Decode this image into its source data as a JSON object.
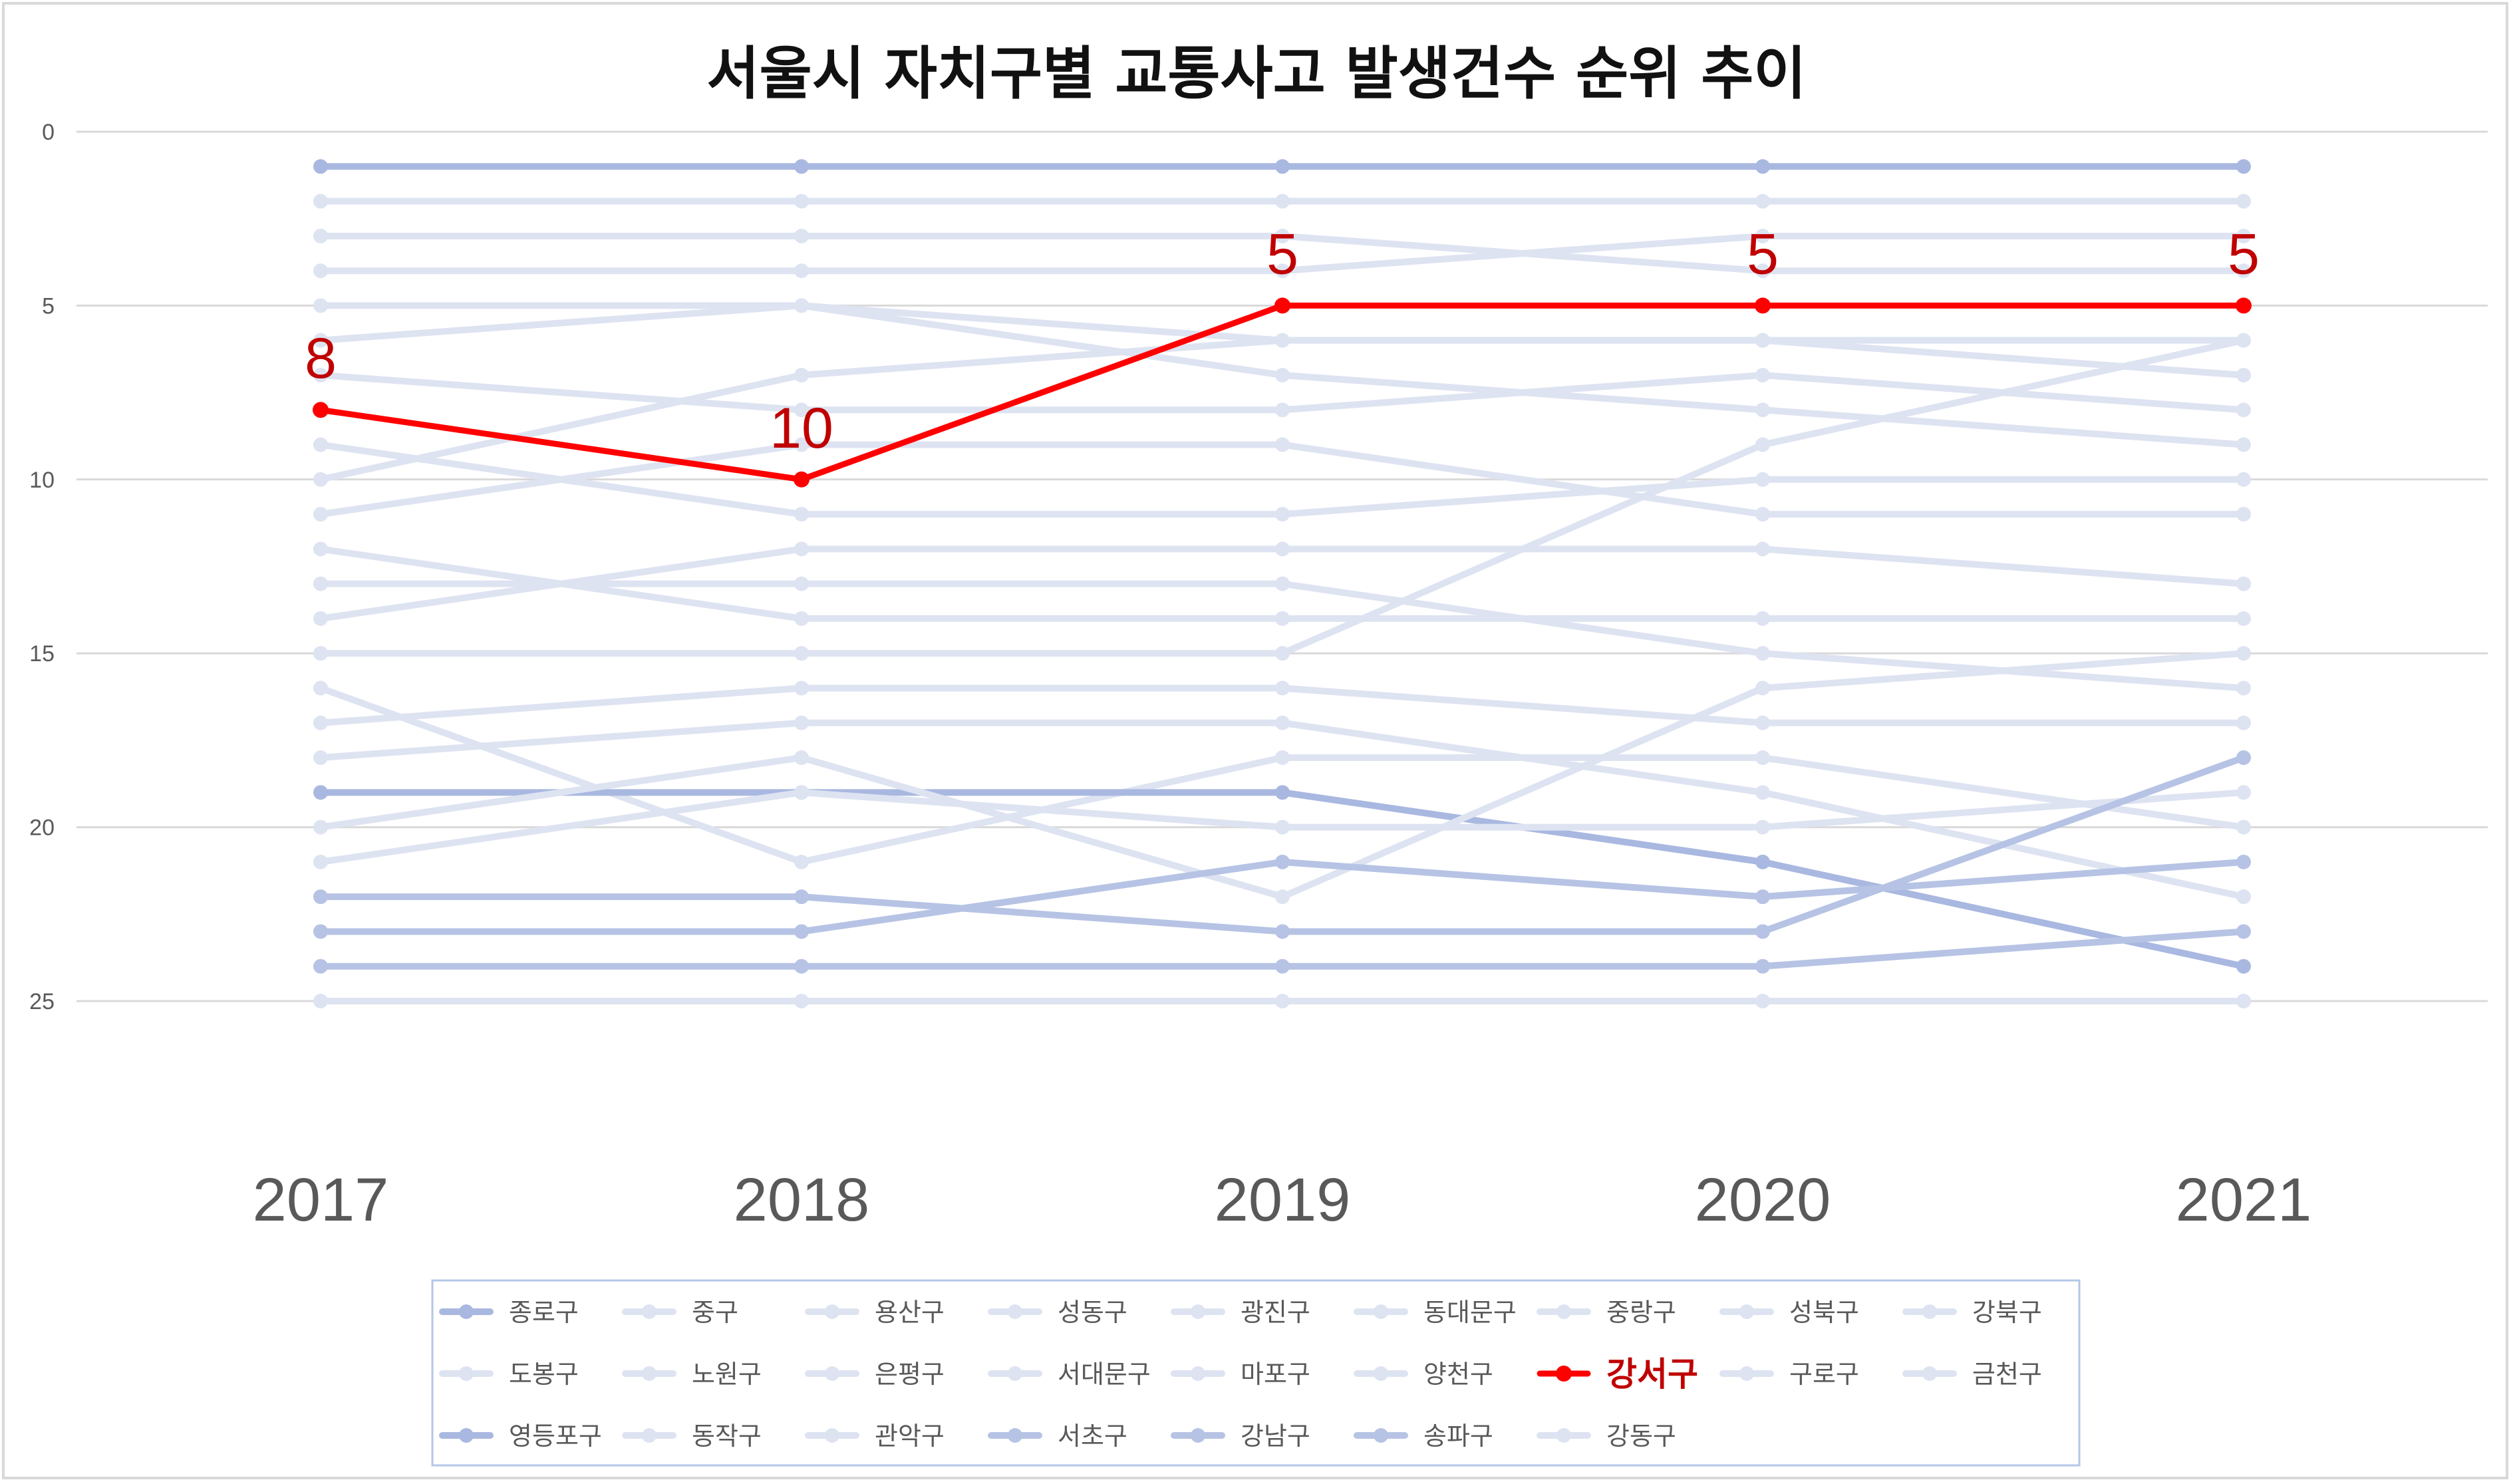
{
  "chart_data": {
    "type": "line",
    "title": "서울시 자치구별 교통사고 발생건수 순위 추이",
    "x": [
      "2017",
      "2018",
      "2019",
      "2020",
      "2021"
    ],
    "ylim": [
      0,
      25
    ],
    "y_inverted": true,
    "yticks": [
      0,
      5,
      10,
      15,
      20,
      25
    ],
    "grid": true,
    "legend_position": "bottom",
    "highlight_series": "강서구",
    "series": [
      {
        "name": "종로구",
        "values": [
          1,
          1,
          1,
          1,
          1
        ],
        "color": "#a9b8e0"
      },
      {
        "name": "중구",
        "values": [
          2,
          2,
          2,
          2,
          2
        ],
        "color": "#dde3f1"
      },
      {
        "name": "용산구",
        "values": [
          3,
          3,
          3,
          4,
          4
        ],
        "color": "#dde3f1"
      },
      {
        "name": "성동구",
        "values": [
          4,
          4,
          4,
          3,
          3
        ],
        "color": "#dde3f1"
      },
      {
        "name": "광진구",
        "values": [
          5,
          5,
          7,
          8,
          9
        ],
        "color": "#dde3f1"
      },
      {
        "name": "동대문구",
        "values": [
          6,
          5,
          6,
          6,
          7
        ],
        "color": "#dde3f1"
      },
      {
        "name": "중랑구",
        "values": [
          7,
          8,
          8,
          7,
          8
        ],
        "color": "#dde3f1"
      },
      {
        "name": "성북구",
        "values": [
          9,
          11,
          11,
          10,
          10
        ],
        "color": "#dde3f1"
      },
      {
        "name": "강북구",
        "values": [
          10,
          7,
          6,
          6,
          6
        ],
        "color": "#dde3f1"
      },
      {
        "name": "도봉구",
        "values": [
          11,
          9,
          9,
          11,
          11
        ],
        "color": "#dde3f1"
      },
      {
        "name": "노원구",
        "values": [
          12,
          14,
          14,
          14,
          14
        ],
        "color": "#dde3f1"
      },
      {
        "name": "은평구",
        "values": [
          13,
          13,
          13,
          15,
          16
        ],
        "color": "#dde3f1"
      },
      {
        "name": "서대문구",
        "values": [
          14,
          12,
          12,
          12,
          13
        ],
        "color": "#dde3f1"
      },
      {
        "name": "마포구",
        "values": [
          15,
          15,
          15,
          9,
          6
        ],
        "color": "#dde3f1"
      },
      {
        "name": "양천구",
        "values": [
          16,
          21,
          18,
          18,
          20
        ],
        "color": "#dde3f1"
      },
      {
        "name": "강서구",
        "values": [
          8,
          10,
          5,
          5,
          5
        ],
        "color": "#ff0000"
      },
      {
        "name": "구로구",
        "values": [
          17,
          16,
          16,
          17,
          17
        ],
        "color": "#dde3f1"
      },
      {
        "name": "금천구",
        "values": [
          18,
          17,
          17,
          19,
          22
        ],
        "color": "#dde3f1"
      },
      {
        "name": "영등포구",
        "values": [
          19,
          19,
          19,
          21,
          24
        ],
        "color": "#a9b8e0"
      },
      {
        "name": "동작구",
        "values": [
          20,
          18,
          22,
          16,
          15
        ],
        "color": "#dde3f1"
      },
      {
        "name": "관악구",
        "values": [
          21,
          19,
          20,
          20,
          19
        ],
        "color": "#dde3f1"
      },
      {
        "name": "서초구",
        "values": [
          22,
          22,
          23,
          23,
          18
        ],
        "color": "#b6c3e4"
      },
      {
        "name": "강남구",
        "values": [
          23,
          23,
          21,
          22,
          21
        ],
        "color": "#b6c3e4"
      },
      {
        "name": "송파구",
        "values": [
          24,
          24,
          24,
          24,
          23
        ],
        "color": "#b6c3e4"
      },
      {
        "name": "강동구",
        "values": [
          25,
          25,
          25,
          25,
          25
        ],
        "color": "#dde3f1"
      }
    ]
  }
}
